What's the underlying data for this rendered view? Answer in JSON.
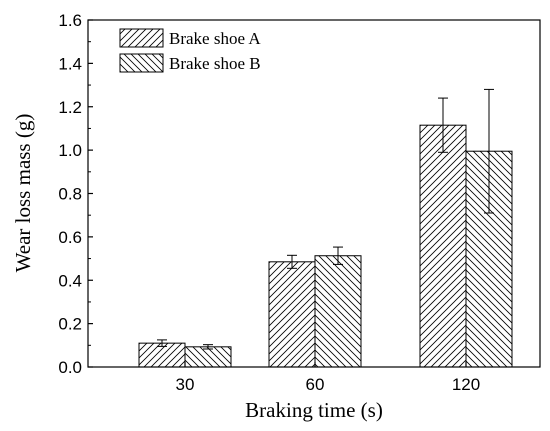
{
  "chart_data": {
    "type": "bar",
    "categories": [
      "30",
      "60",
      "120"
    ],
    "series": [
      {
        "name": "Brake shoe A",
        "values": [
          0.11,
          0.485,
          1.115
        ],
        "errors": [
          0.015,
          0.03,
          0.125
        ],
        "pattern": "hatch-forward"
      },
      {
        "name": "Brake shoe B",
        "values": [
          0.093,
          0.513,
          0.995
        ],
        "errors": [
          0.01,
          0.04,
          0.285
        ],
        "pattern": "hatch-backward"
      }
    ],
    "xlabel": "Braking time (s)",
    "ylabel": "Wear loss mass (g)",
    "ylim": [
      0,
      1.6
    ],
    "yticks": [
      "0.0",
      "0.2",
      "0.4",
      "0.6",
      "0.8",
      "1.0",
      "1.2",
      "1.4",
      "1.6"
    ],
    "grid": false,
    "legend_position": "top-left",
    "bar_fill": "#ffffff",
    "line_color": "#000000"
  }
}
